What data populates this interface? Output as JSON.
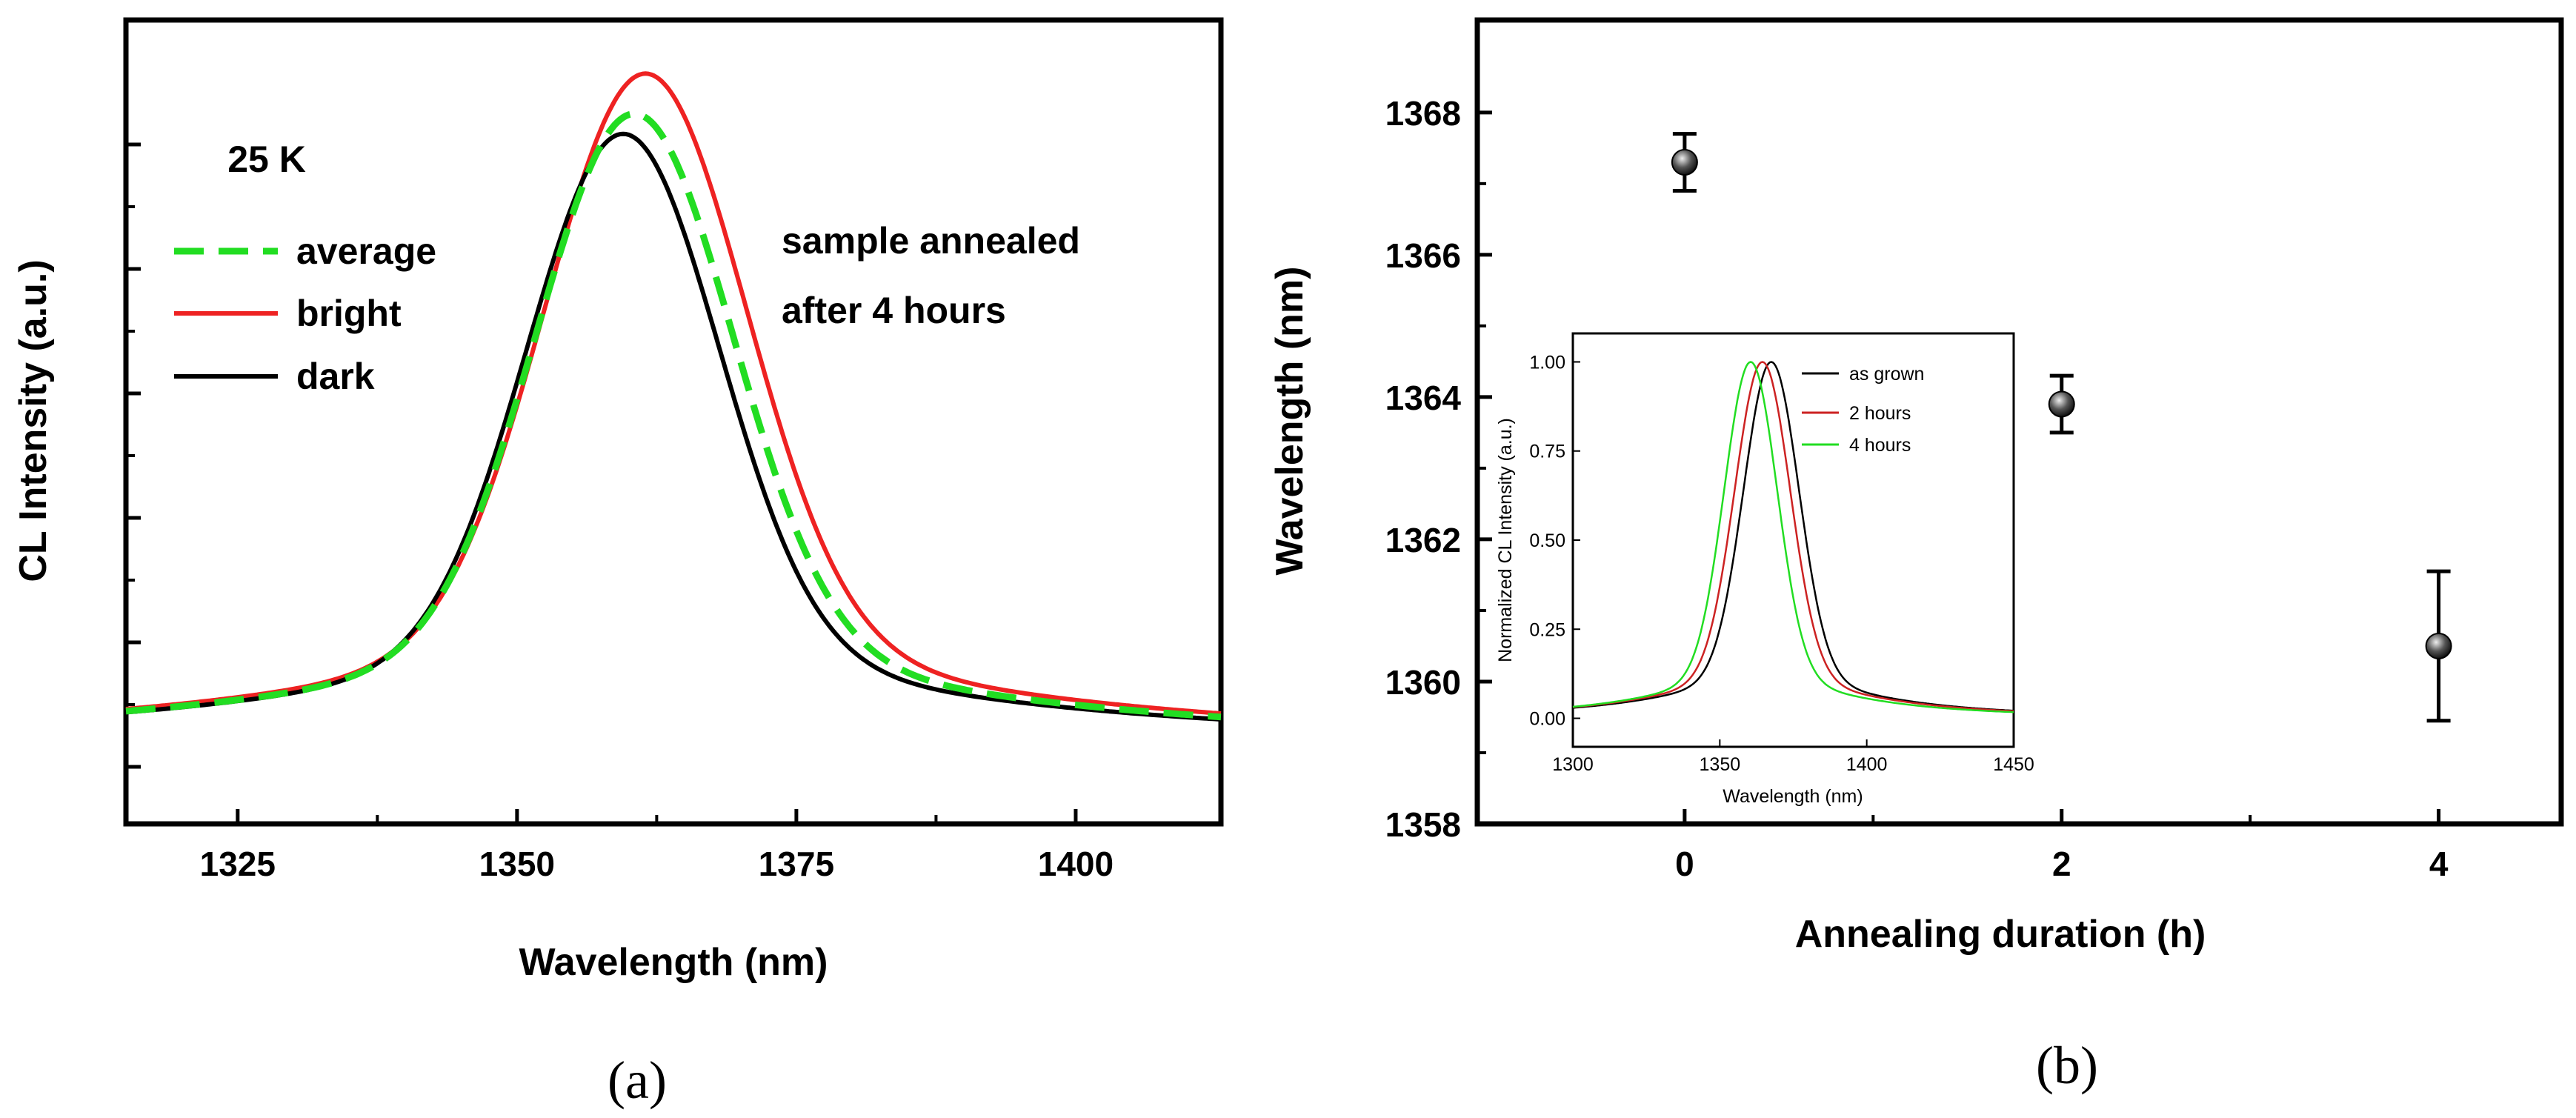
{
  "chart_data": [
    {
      "panel": "a",
      "type": "line",
      "title": "",
      "xlabel": "Wavelength (nm)",
      "ylabel": "CL Intensity (a.u.)",
      "xlim": [
        1315,
        1413
      ],
      "ylim": [
        -0.12,
        1.08
      ],
      "xticks": [
        1325,
        1350,
        1375,
        1400
      ],
      "y_tick_labels_shown": false,
      "annotations": [
        "25 K",
        "sample annealed",
        "after 4 hours"
      ],
      "legend": {
        "position": "top-left",
        "entries": [
          "average",
          "bright",
          "dark"
        ]
      },
      "series": [
        {
          "name": "average",
          "color": "#22dd22",
          "style": "dashed",
          "peak_wavelength": 1360.5,
          "peak_intensity": 0.94,
          "fwhm": 20.5,
          "baseline": 0.0
        },
        {
          "name": "bright",
          "color": "#ee2222",
          "style": "solid",
          "peak_wavelength": 1361.5,
          "peak_intensity": 1.0,
          "fwhm": 21.0,
          "baseline": 0.0
        },
        {
          "name": "dark",
          "color": "#000000",
          "style": "solid",
          "peak_wavelength": 1359.5,
          "peak_intensity": 0.91,
          "fwhm": 20.0,
          "baseline": 0.0
        }
      ]
    },
    {
      "panel": "b",
      "type": "scatter",
      "title": "",
      "xlabel": "Annealing duration (h)",
      "ylabel": "Wavelength (nm)",
      "xlim": [
        -1.1,
        4.65
      ],
      "ylim": [
        1358,
        1369.3
      ],
      "xticks": [
        0,
        2,
        4
      ],
      "yticks": [
        1358,
        1360,
        1362,
        1364,
        1366,
        1368
      ],
      "points": [
        {
          "x": 0,
          "y": 1367.3,
          "err": 0.4
        },
        {
          "x": 2,
          "y": 1363.9,
          "err": 0.4
        },
        {
          "x": 4,
          "y": 1360.5,
          "err": 1.05
        }
      ],
      "inset": {
        "type": "line",
        "xlabel": "Wavelength (nm)",
        "ylabel": "Normalized CL Intensity (a.u.)",
        "xlim": [
          1300,
          1450
        ],
        "ylim": [
          -0.08,
          1.08
        ],
        "xticks": [
          1300,
          1350,
          1400,
          1450
        ],
        "yticks": [
          "0.00",
          "0.25",
          "0.50",
          "0.75",
          "1.00"
        ],
        "legend": {
          "position": "top-right",
          "entries": [
            "as grown",
            "2 hours",
            "4 hours"
          ]
        },
        "series": [
          {
            "name": "as grown",
            "color": "#000000",
            "peak_wavelength": 1367.5,
            "peak_intensity": 1.0,
            "fwhm": 22
          },
          {
            "name": "2 hours",
            "color": "#cc2222",
            "peak_wavelength": 1364.5,
            "peak_intensity": 1.0,
            "fwhm": 22
          },
          {
            "name": "4 hours",
            "color": "#22dd22",
            "peak_wavelength": 1360.5,
            "peak_intensity": 1.0,
            "fwhm": 21
          }
        ]
      }
    }
  ],
  "panel_labels": [
    "(a)",
    "(b)"
  ]
}
